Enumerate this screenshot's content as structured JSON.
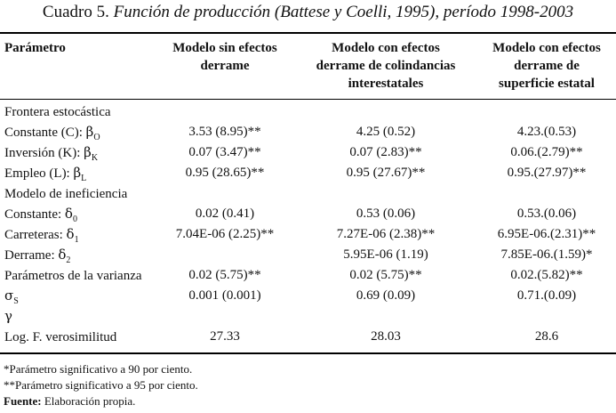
{
  "caption": {
    "lead": "Cuadro 5.",
    "rest": "Función de producción (Battese y Coelli, 1995), período 1998-2003"
  },
  "header": {
    "col0": "Parámetro",
    "col1": [
      "Modelo sin efectos",
      "derrame"
    ],
    "col2": [
      "Modelo con efectos",
      "derrame de colindancias",
      "interestatales"
    ],
    "col3": [
      "Modelo con efectos",
      "derrame de",
      "superficie estatal"
    ]
  },
  "rows": [
    {
      "label": "Frontera estocástica",
      "sym": "",
      "sub": "",
      "v1": "",
      "v2": "",
      "v3": ""
    },
    {
      "label": "Constante (C): ",
      "sym": "β",
      "sub": "O",
      "v1": "3.53 (8.95)**",
      "v2": "4.25 (0.52)",
      "v3": "4.23.(0.53)"
    },
    {
      "label": "Inversión (K): ",
      "sym": "β",
      "sub": "K",
      "v1": "0.07 (3.47)**",
      "v2": "0.07 (2.83)**",
      "v3": "0.06.(2.79)**"
    },
    {
      "label": "Empleo (L): ",
      "sym": "β",
      "sub": "L",
      "v1": "0.95 (28.65)**",
      "v2": "0.95 (27.67)**",
      "v3": "0.95.(27.97)**"
    },
    {
      "label": "Modelo de ineficiencia",
      "sym": "",
      "sub": "",
      "v1": "",
      "v2": "",
      "v3": ""
    },
    {
      "label": "Constante: ",
      "sym": "δ",
      "sub": "0",
      "v1": "0.02 (0.41)",
      "v2": "0.53 (0.06)",
      "v3": "0.53.(0.06)"
    },
    {
      "label": "Carreteras: ",
      "sym": "δ",
      "sub": "1",
      "v1": "7.04E-06 (2.25)**",
      "v2": "7.27E-06 (2.38)**",
      "v3": "6.95E-06.(2.31)**"
    },
    {
      "label": "Derrame: ",
      "sym": "δ",
      "sub": "2",
      "v1": "",
      "v2": "5.95E-06 (1.19)",
      "v3": "7.85E-06.(1.59)*"
    },
    {
      "label": "Parámetros de la varianza",
      "sym": "",
      "sub": "",
      "v1": "0.02 (5.75)**",
      "v2": "0.02 (5.75)**",
      "v3": "0.02.(5.82)**"
    },
    {
      "label": "",
      "sym": "σ",
      "sub": "S",
      "v1": "0.001 (0.001)",
      "v2": "0.69 (0.09)",
      "v3": "0.71.(0.09)"
    },
    {
      "label": "",
      "sym": "γ",
      "sub": "",
      "v1": "",
      "v2": "",
      "v3": ""
    },
    {
      "label": "Log. F. verosimilitud",
      "sym": "",
      "sub": "",
      "v1": "27.33",
      "v2": "28.03",
      "v3": "28.6"
    }
  ],
  "notes": {
    "n1": "*Parámetro significativo a 90 por ciento.",
    "n2": "**Parámetro significativo a 95 por ciento.",
    "source_label": "Fuente:",
    "source_text": "Elaboración propia."
  }
}
